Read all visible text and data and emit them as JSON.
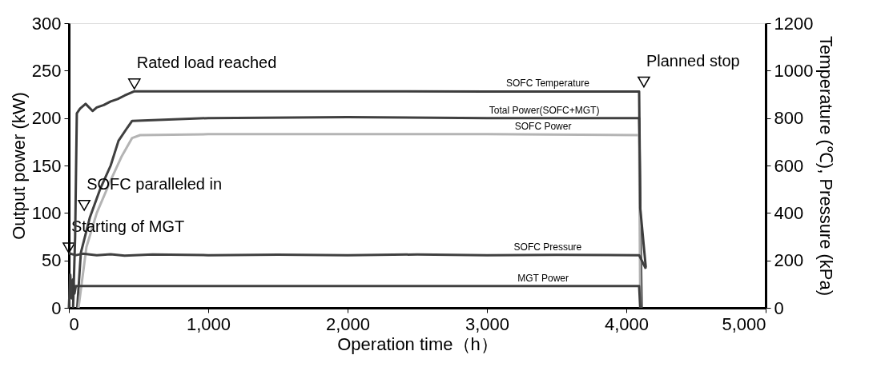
{
  "chart_data": {
    "type": "line",
    "xlabel": "Operation time（h）",
    "ylabel": "Output power (kW)",
    "y2label": "Temperature (℃), Pressure (kPa)",
    "xlim": [
      0,
      5000
    ],
    "xticks": [
      0,
      {
        "value": 1000,
        "label": "1,000"
      },
      {
        "value": 2000,
        "label": "2,000"
      },
      {
        "value": 3000,
        "label": "3,000"
      },
      {
        "value": 4000,
        "label": "4,000"
      },
      {
        "value": 5000,
        "label": "5,000"
      }
    ],
    "ylim": [
      0,
      300
    ],
    "yticks": [
      0,
      50,
      100,
      150,
      200,
      250,
      300
    ],
    "y2lim": [
      0,
      1200
    ],
    "y2ticks": [
      0,
      200,
      400,
      600,
      800,
      1000,
      1200
    ],
    "grid": false,
    "legend": false,
    "marker": "none",
    "line_style": "solid",
    "series": [
      {
        "name": "SOFC Temperature",
        "color": "#3c3c3c",
        "axis": "y2",
        "x": [
          30,
          45,
          57,
          80,
          120,
          170,
          200,
          250,
          300,
          350,
          400,
          470,
          1000,
          2000,
          3000,
          4092,
          4100,
          4140
        ],
        "values": [
          0,
          300,
          820,
          840,
          860,
          830,
          845,
          855,
          870,
          880,
          895,
          913,
          913,
          913,
          912,
          912,
          420,
          170
        ]
      },
      {
        "name": "Total Power(SOFC+MGT)",
        "color": "#404040",
        "x": [
          60,
          86,
          150,
          224,
          300,
          356,
          420,
          454,
          1000,
          2000,
          3000,
          4092,
          4110
        ],
        "values": [
          0,
          58,
          95,
          125,
          150,
          176,
          190,
          197,
          200,
          201,
          200,
          200,
          0
        ]
      },
      {
        "name": "SOFC Power",
        "color": "#b4b4b4",
        "x": [
          69,
          126,
          200,
          299,
          380,
          454,
          511,
          1000,
          2000,
          3000,
          4092,
          4100
        ],
        "values": [
          0,
          64,
          100,
          134,
          160,
          179,
          182,
          183,
          183,
          183,
          182,
          0
        ]
      },
      {
        "name": "SOFC Pressure",
        "color": "#404040",
        "axis": "y2",
        "x": [
          0,
          50,
          100,
          200,
          300,
          400,
          600,
          1000,
          1500,
          2000,
          2500,
          3000,
          3500,
          4092,
          4140
        ],
        "values": [
          230,
          222,
          228,
          222,
          226,
          220,
          225,
          222,
          224,
          222,
          225,
          222,
          223,
          222,
          165
        ]
      },
      {
        "name": "MGT Power",
        "color": "#404040",
        "x": [
          0,
          10,
          20,
          30,
          40,
          50,
          60,
          1000,
          2000,
          3000,
          4092,
          4100
        ],
        "values": [
          0,
          35,
          10,
          30,
          15,
          23,
          23,
          23,
          23,
          23,
          23,
          0
        ]
      }
    ],
    "annotations": [
      {
        "text": "Starting of MGT",
        "x": 0,
        "y": 63
      },
      {
        "text": "SOFC paralleled in",
        "x": 110,
        "y": 108
      },
      {
        "text": "Rated load reached",
        "x": 470,
        "y": 236
      },
      {
        "text": "Planned stop",
        "x": 4126,
        "y": 238
      }
    ]
  }
}
